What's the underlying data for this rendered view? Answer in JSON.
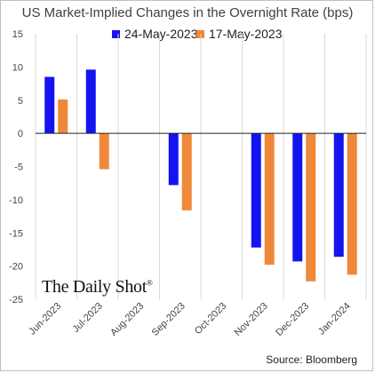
{
  "chart_data": {
    "type": "bar",
    "title": "US Market-Implied Changes in the Overnight Rate (bps)",
    "categories": [
      "Jun-2023",
      "Jul-2023",
      "Aug-2023",
      "Sep-2023",
      "Oct-2023",
      "Nov-2023",
      "Dec-2023",
      "Jan-2024"
    ],
    "series": [
      {
        "name": "24-May-2023",
        "color": "#1414f0",
        "values": [
          8.5,
          9.6,
          null,
          -7.8,
          null,
          -17.2,
          -19.3,
          -18.6
        ]
      },
      {
        "name": "17-May-2023",
        "color": "#f0883a",
        "values": [
          5.1,
          -5.4,
          null,
          -11.6,
          null,
          -19.8,
          -22.3,
          -21.3
        ]
      }
    ],
    "ylim": [
      -25,
      15
    ],
    "yticks": [
      15,
      10,
      5,
      0,
      -5,
      -10,
      -15,
      -20,
      -25
    ],
    "xlabel": "",
    "ylabel": "",
    "legend_position": "top-center",
    "grid": "vertical category gridlines",
    "source": "Source: Bloomberg",
    "watermark": "The Daily Shot",
    "watermark_mark": "®"
  }
}
